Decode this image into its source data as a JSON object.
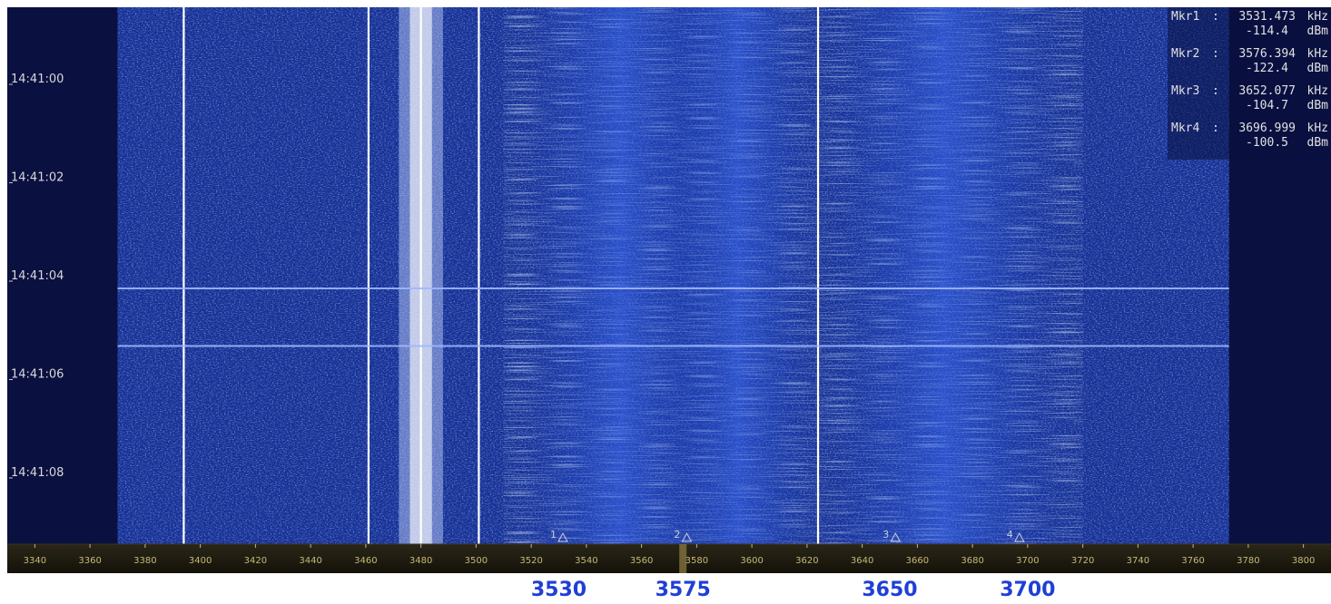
{
  "chart_data": {
    "type": "heatmap",
    "title": "",
    "xlabel": "",
    "ylabel": "",
    "x_unit": "kHz",
    "x_range": [
      3330,
      3810
    ],
    "x_ticks": [
      3340,
      3360,
      3380,
      3400,
      3420,
      3440,
      3460,
      3480,
      3500,
      3520,
      3540,
      3560,
      3580,
      3600,
      3620,
      3640,
      3660,
      3680,
      3700,
      3720,
      3740,
      3760,
      3780,
      3800
    ],
    "data_span_khz": [
      3370,
      3773
    ],
    "time_labels": [
      "14:41:00",
      "14:41:02",
      "14:41:04",
      "14:41:06",
      "14:41:08"
    ],
    "palette": {
      "background": "#0a1040",
      "noise_low": "#0a1a6e",
      "noise_mid": "#2f5be0",
      "signal": "#ffffff",
      "axis_bg": "#1c1a12",
      "axis_text": "#c8b878",
      "marker_text": "#d0d0d0",
      "highlight_text": "#1f3fd6"
    },
    "carriers_khz": [
      3394,
      3461,
      3480,
      3501,
      3624
    ],
    "tuned_khz": 3575,
    "horizontal_streaks": [
      "14:41:04",
      "14:41:06"
    ],
    "markers": [
      {
        "id": "1",
        "label": "Mkr1",
        "freq_khz": 3531.473,
        "freq_text": "3531.473",
        "level_text": "-114.4",
        "freq_unit": "kHz",
        "level_unit": "dBm"
      },
      {
        "id": "2",
        "label": "Mkr2",
        "freq_khz": 3576.394,
        "freq_text": "3576.394",
        "level_text": "-122.4",
        "freq_unit": "kHz",
        "level_unit": "dBm"
      },
      {
        "id": "3",
        "label": "Mkr3",
        "freq_khz": 3652.077,
        "freq_text": "3652.077",
        "level_text": "-104.7",
        "freq_unit": "kHz",
        "level_unit": "dBm"
      },
      {
        "id": "4",
        "label": "Mkr4",
        "freq_khz": 3696.999,
        "freq_text": "3696.999",
        "level_text": "-100.5",
        "freq_unit": "kHz",
        "level_unit": "dBm"
      }
    ],
    "annotations": [
      {
        "text": "3530",
        "freq_khz": 3530
      },
      {
        "text": "3575",
        "freq_khz": 3575
      },
      {
        "text": "3650",
        "freq_khz": 3650
      },
      {
        "text": "3700",
        "freq_khz": 3700
      }
    ]
  }
}
